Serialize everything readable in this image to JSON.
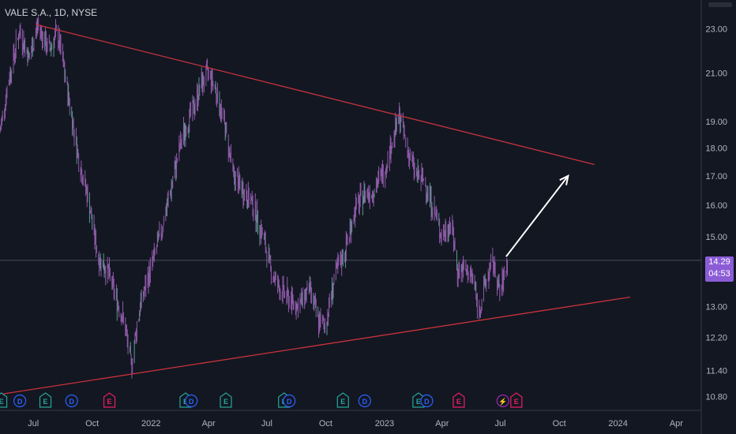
{
  "header": {
    "title": "VALE S.A., 1D, NYSE"
  },
  "last_price": {
    "value": "14.29",
    "countdown": "04:53"
  },
  "colors": {
    "background": "#131722",
    "candle": "#8e5aa8",
    "candle_alt": "#5a9a8c",
    "trendline": "#c8323c",
    "arrow": "#ffffff",
    "grid_line": "#363a45",
    "price_tag": "#8b5cd6",
    "event_earnings": "#26a69a",
    "event_dividend": "#2962ff",
    "event_earnings_past": "#e91e63"
  },
  "chart_data": {
    "type": "candlestick",
    "symbol": "VALE S.A.",
    "interval": "1D",
    "exchange": "NYSE",
    "y_scale": "log",
    "ylim": [
      10.5,
      24.2
    ],
    "y_ticks": [
      "23.00",
      "21.00",
      "19.00",
      "18.00",
      "17.00",
      "16.00",
      "15.00",
      "13.00",
      "12.20",
      "11.40",
      "10.80"
    ],
    "x_ticks": [
      "Jul",
      "Oct",
      "2022",
      "Apr",
      "Jul",
      "Oct",
      "2023",
      "Apr",
      "Jul",
      "Oct",
      "2024",
      "Apr"
    ],
    "xlim": [
      "2021-05-10",
      "2024-05-10"
    ],
    "price_path": [
      [
        "2021-05-10",
        18.6
      ],
      [
        "2021-05-25",
        20.9
      ],
      [
        "2021-06-10",
        22.9
      ],
      [
        "2021-06-25",
        21.6
      ],
      [
        "2021-07-08",
        23.2
      ],
      [
        "2021-07-25",
        22.0
      ],
      [
        "2021-08-08",
        22.8
      ],
      [
        "2021-08-25",
        20.0
      ],
      [
        "2021-09-10",
        17.6
      ],
      [
        "2021-09-25",
        16.2
      ],
      [
        "2021-10-10",
        14.4
      ],
      [
        "2021-10-25",
        14.0
      ],
      [
        "2021-11-08",
        13.2
      ],
      [
        "2021-11-20",
        12.6
      ],
      [
        "2021-12-01",
        11.5
      ],
      [
        "2021-12-15",
        13.0
      ],
      [
        "2021-12-31",
        14.0
      ],
      [
        "2022-01-15",
        15.0
      ],
      [
        "2022-02-01",
        16.5
      ],
      [
        "2022-02-20",
        18.5
      ],
      [
        "2022-03-08",
        19.5
      ],
      [
        "2022-03-20",
        20.5
      ],
      [
        "2022-04-01",
        21.0
      ],
      [
        "2022-04-10",
        20.5
      ],
      [
        "2022-04-25",
        19.0
      ],
      [
        "2022-05-10",
        17.0
      ],
      [
        "2022-05-25",
        16.5
      ],
      [
        "2022-06-10",
        16.0
      ],
      [
        "2022-06-25",
        15.0
      ],
      [
        "2022-07-08",
        14.0
      ],
      [
        "2022-07-20",
        13.5
      ],
      [
        "2022-08-05",
        13.2
      ],
      [
        "2022-08-20",
        13.0
      ],
      [
        "2022-09-05",
        13.5
      ],
      [
        "2022-09-20",
        12.6
      ],
      [
        "2022-10-01",
        12.5
      ],
      [
        "2022-10-15",
        13.8
      ],
      [
        "2022-11-01",
        14.6
      ],
      [
        "2022-11-15",
        15.8
      ],
      [
        "2022-12-01",
        16.4
      ],
      [
        "2022-12-15",
        16.5
      ],
      [
        "2023-01-01",
        17.2
      ],
      [
        "2023-01-15",
        18.4
      ],
      [
        "2023-01-25",
        19.2
      ],
      [
        "2023-02-05",
        18.0
      ],
      [
        "2023-02-20",
        17.0
      ],
      [
        "2023-03-05",
        16.8
      ],
      [
        "2023-03-20",
        15.8
      ],
      [
        "2023-04-01",
        15.0
      ],
      [
        "2023-04-15",
        15.5
      ],
      [
        "2023-04-25",
        14.0
      ],
      [
        "2023-05-05",
        14.0
      ],
      [
        "2023-05-20",
        13.8
      ],
      [
        "2023-05-28",
        12.8
      ],
      [
        "2023-06-10",
        13.8
      ],
      [
        "2023-06-20",
        14.2
      ],
      [
        "2023-07-01",
        13.3
      ],
      [
        "2023-07-12",
        14.29
      ]
    ],
    "trendlines": [
      {
        "from": [
          "2021-07-05",
          23.2
        ],
        "to": [
          "2023-11-25",
          17.4
        ]
      },
      {
        "from": [
          "2021-05-10",
          10.85
        ],
        "to": [
          "2024-01-20",
          13.25
        ]
      }
    ],
    "projection_arrow": {
      "from": [
        "2023-07-10",
        14.4
      ],
      "to": [
        "2023-10-15",
        17.0
      ]
    },
    "last_price": 14.29,
    "events": [
      {
        "date": "2021-05-12",
        "type": "E"
      },
      {
        "date": "2021-06-10",
        "type": "D"
      },
      {
        "date": "2021-07-20",
        "type": "E"
      },
      {
        "date": "2021-08-30",
        "type": "D"
      },
      {
        "date": "2021-10-28",
        "type": "E"
      },
      {
        "date": "2022-02-24",
        "type": "E"
      },
      {
        "date": "2022-03-05",
        "type": "D"
      },
      {
        "date": "2022-04-28",
        "type": "E"
      },
      {
        "date": "2022-07-28",
        "type": "E"
      },
      {
        "date": "2022-08-05",
        "type": "D"
      },
      {
        "date": "2022-10-28",
        "type": "E"
      },
      {
        "date": "2022-12-01",
        "type": "D"
      },
      {
        "date": "2023-02-23",
        "type": "E"
      },
      {
        "date": "2023-03-08",
        "type": "D"
      },
      {
        "date": "2023-04-27",
        "type": "E"
      },
      {
        "date": "2023-07-05",
        "type": "S"
      },
      {
        "date": "2023-07-26",
        "type": "E"
      }
    ]
  }
}
